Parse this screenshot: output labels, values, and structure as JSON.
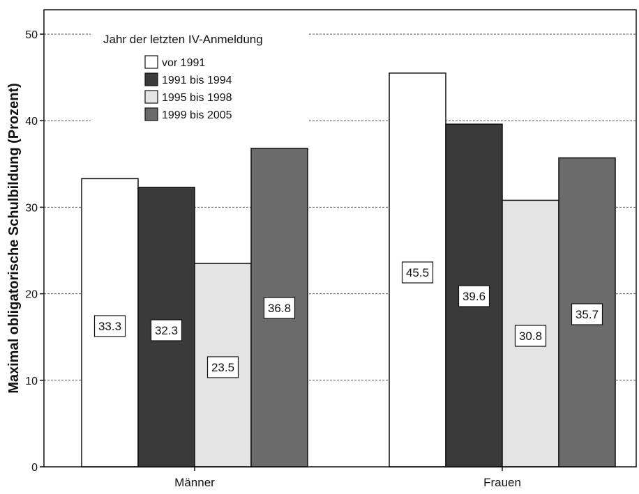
{
  "chart_data": {
    "type": "bar",
    "ylabel": "Maximal obligatorische Schulbildung (Prozent)",
    "xlabel": "",
    "categories": [
      "Männer",
      "Frauen"
    ],
    "ylim": [
      0,
      50
    ],
    "yticks": [
      0,
      10,
      20,
      30,
      40,
      50
    ],
    "grid": true,
    "legend": {
      "title": "Jahr der letzten IV-Anmeldung",
      "placement": "top-left"
    },
    "series": [
      {
        "name": "vor 1991",
        "color": "#ffffff",
        "values": [
          33.3,
          45.5
        ],
        "labels": [
          "33.3",
          "45.5"
        ]
      },
      {
        "name": "1991 bis 1994",
        "color": "#3a3a3a",
        "values": [
          32.3,
          39.6
        ],
        "labels": [
          "32.3",
          "39.6"
        ]
      },
      {
        "name": "1995 bis 1998",
        "color": "#e4e4e4",
        "values": [
          23.5,
          30.8
        ],
        "labels": [
          "23.5",
          "30.8"
        ]
      },
      {
        "name": "1999 bis 2005",
        "color": "#6b6b6b",
        "values": [
          36.8,
          35.7
        ],
        "labels": [
          "36.8",
          "35.7"
        ]
      }
    ]
  }
}
